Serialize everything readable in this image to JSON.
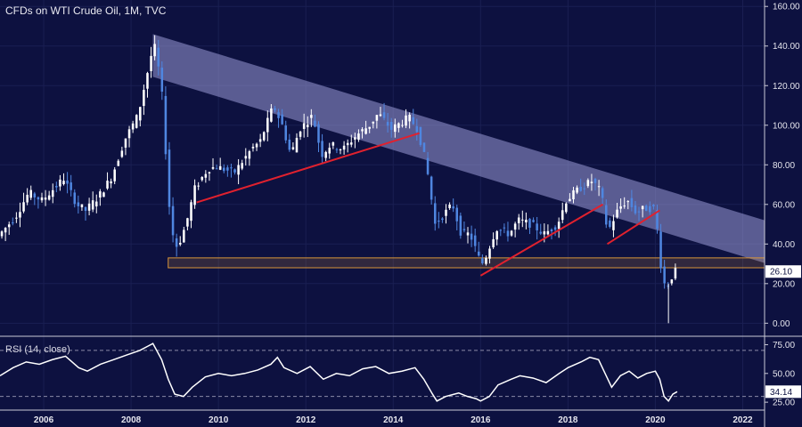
{
  "header": {
    "title": "CFDs on WTI Crude Oil, 1M, TVC"
  },
  "rsi_panel": {
    "title": "RSI (14, close)"
  },
  "colors": {
    "background": "#0d1140",
    "up_candle": "#ffffff",
    "down_candle": "#4f86e0",
    "trendline": "#e0212e",
    "channel": "#9b9bd6",
    "support_zone": "#d9963a",
    "rsi_line": "#ffffff"
  },
  "chart_data": [
    {
      "type": "candlestick",
      "title": "CFDs on WTI Crude Oil, 1M, TVC",
      "x_ticks": [
        "2006",
        "2008",
        "2010",
        "2012",
        "2014",
        "2016",
        "2018",
        "2020",
        "2022"
      ],
      "x_range": [
        2005.0,
        2022.5
      ],
      "y_ticks": [
        "160.00",
        "140.00",
        "120.00",
        "100.00",
        "80.00",
        "60.00",
        "40.00",
        "20.00",
        "0.00"
      ],
      "y_range": [
        -3,
        161
      ],
      "last_price_label": "26.10",
      "last_price": 26.1,
      "price_path": [
        [
          2005.0,
          44
        ],
        [
          2005.4,
          54
        ],
        [
          2005.7,
          66
        ],
        [
          2006.0,
          62
        ],
        [
          2006.5,
          73
        ],
        [
          2006.8,
          60
        ],
        [
          2007.0,
          57
        ],
        [
          2007.3,
          64
        ],
        [
          2007.6,
          74
        ],
        [
          2007.9,
          93
        ],
        [
          2008.2,
          105
        ],
        [
          2008.5,
          135
        ],
        [
          2008.6,
          140
        ],
        [
          2008.75,
          115
        ],
        [
          2008.95,
          48
        ],
        [
          2009.1,
          38
        ],
        [
          2009.3,
          50
        ],
        [
          2009.5,
          68
        ],
        [
          2009.8,
          78
        ],
        [
          2010.0,
          79
        ],
        [
          2010.4,
          76
        ],
        [
          2010.8,
          88
        ],
        [
          2011.0,
          92
        ],
        [
          2011.3,
          110
        ],
        [
          2011.5,
          100
        ],
        [
          2011.7,
          85
        ],
        [
          2011.9,
          98
        ],
        [
          2012.2,
          105
        ],
        [
          2012.4,
          85
        ],
        [
          2012.6,
          90
        ],
        [
          2012.9,
          88
        ],
        [
          2013.2,
          95
        ],
        [
          2013.5,
          100
        ],
        [
          2013.7,
          106
        ],
        [
          2014.0,
          98
        ],
        [
          2014.4,
          104
        ],
        [
          2014.6,
          98
        ],
        [
          2014.8,
          80
        ],
        [
          2015.0,
          50
        ],
        [
          2015.2,
          55
        ],
        [
          2015.4,
          60
        ],
        [
          2015.6,
          45
        ],
        [
          2015.8,
          45
        ],
        [
          2016.0,
          33
        ],
        [
          2016.1,
          30
        ],
        [
          2016.4,
          48
        ],
        [
          2016.7,
          45
        ],
        [
          2016.9,
          52
        ],
        [
          2017.2,
          50
        ],
        [
          2017.5,
          45
        ],
        [
          2017.8,
          50
        ],
        [
          2018.0,
          62
        ],
        [
          2018.3,
          68
        ],
        [
          2018.6,
          72
        ],
        [
          2018.8,
          66
        ],
        [
          2018.95,
          46
        ],
        [
          2019.2,
          58
        ],
        [
          2019.4,
          62
        ],
        [
          2019.6,
          56
        ],
        [
          2019.8,
          58
        ],
        [
          2020.0,
          58
        ],
        [
          2020.1,
          45
        ],
        [
          2020.2,
          22
        ],
        [
          2020.3,
          18
        ],
        [
          2020.4,
          23
        ],
        [
          2020.5,
          26.1
        ]
      ],
      "annotations": {
        "falling_channel": [
          [
            2008.5,
            146
          ],
          [
            2022.5,
            52
          ]
        ],
        "support_zone": [
          28,
          33
        ],
        "trendlines": [
          [
            [
              2009.5,
              61
            ],
            [
              2014.6,
              96
            ]
          ],
          [
            [
              2016.0,
              24
            ],
            [
              2018.8,
              60
            ]
          ],
          [
            [
              2018.9,
              40
            ],
            [
              2020.1,
              57
            ]
          ]
        ]
      }
    },
    {
      "type": "line",
      "title": "RSI (14, close)",
      "y_ticks": [
        "75.00",
        "50.00",
        "25.00"
      ],
      "y_range": [
        22,
        80
      ],
      "reference_lines": [
        70,
        30
      ],
      "last_value_label": "34.14",
      "last_value": 34.14,
      "series": [
        {
          "values": [
            [
              2005.0,
              48
            ],
            [
              2005.3,
              55
            ],
            [
              2005.6,
              60
            ],
            [
              2005.9,
              58
            ],
            [
              2006.2,
              62
            ],
            [
              2006.5,
              65
            ],
            [
              2006.8,
              55
            ],
            [
              2007.0,
              52
            ],
            [
              2007.3,
              58
            ],
            [
              2007.6,
              62
            ],
            [
              2007.9,
              66
            ],
            [
              2008.2,
              70
            ],
            [
              2008.4,
              74
            ],
            [
              2008.5,
              76
            ],
            [
              2008.7,
              62
            ],
            [
              2008.85,
              45
            ],
            [
              2009.0,
              32
            ],
            [
              2009.2,
              30
            ],
            [
              2009.4,
              38
            ],
            [
              2009.7,
              47
            ],
            [
              2010.0,
              50
            ],
            [
              2010.3,
              48
            ],
            [
              2010.6,
              50
            ],
            [
              2010.9,
              53
            ],
            [
              2011.2,
              58
            ],
            [
              2011.35,
              64
            ],
            [
              2011.5,
              55
            ],
            [
              2011.8,
              50
            ],
            [
              2012.1,
              56
            ],
            [
              2012.4,
              45
            ],
            [
              2012.7,
              50
            ],
            [
              2013.0,
              48
            ],
            [
              2013.3,
              54
            ],
            [
              2013.6,
              56
            ],
            [
              2013.9,
              50
            ],
            [
              2014.2,
              52
            ],
            [
              2014.5,
              55
            ],
            [
              2014.7,
              45
            ],
            [
              2014.9,
              32
            ],
            [
              2015.0,
              26
            ],
            [
              2015.2,
              30
            ],
            [
              2015.5,
              33
            ],
            [
              2015.7,
              30
            ],
            [
              2015.9,
              28
            ],
            [
              2016.0,
              26
            ],
            [
              2016.2,
              30
            ],
            [
              2016.4,
              40
            ],
            [
              2016.7,
              45
            ],
            [
              2016.9,
              48
            ],
            [
              2017.2,
              46
            ],
            [
              2017.5,
              42
            ],
            [
              2017.8,
              50
            ],
            [
              2018.0,
              55
            ],
            [
              2018.3,
              60
            ],
            [
              2018.5,
              64
            ],
            [
              2018.7,
              62
            ],
            [
              2018.85,
              50
            ],
            [
              2019.0,
              38
            ],
            [
              2019.2,
              48
            ],
            [
              2019.4,
              52
            ],
            [
              2019.6,
              46
            ],
            [
              2019.8,
              50
            ],
            [
              2020.0,
              52
            ],
            [
              2020.1,
              45
            ],
            [
              2020.2,
              30
            ],
            [
              2020.3,
              26
            ],
            [
              2020.4,
              32
            ],
            [
              2020.5,
              34.14
            ]
          ]
        }
      ]
    }
  ]
}
